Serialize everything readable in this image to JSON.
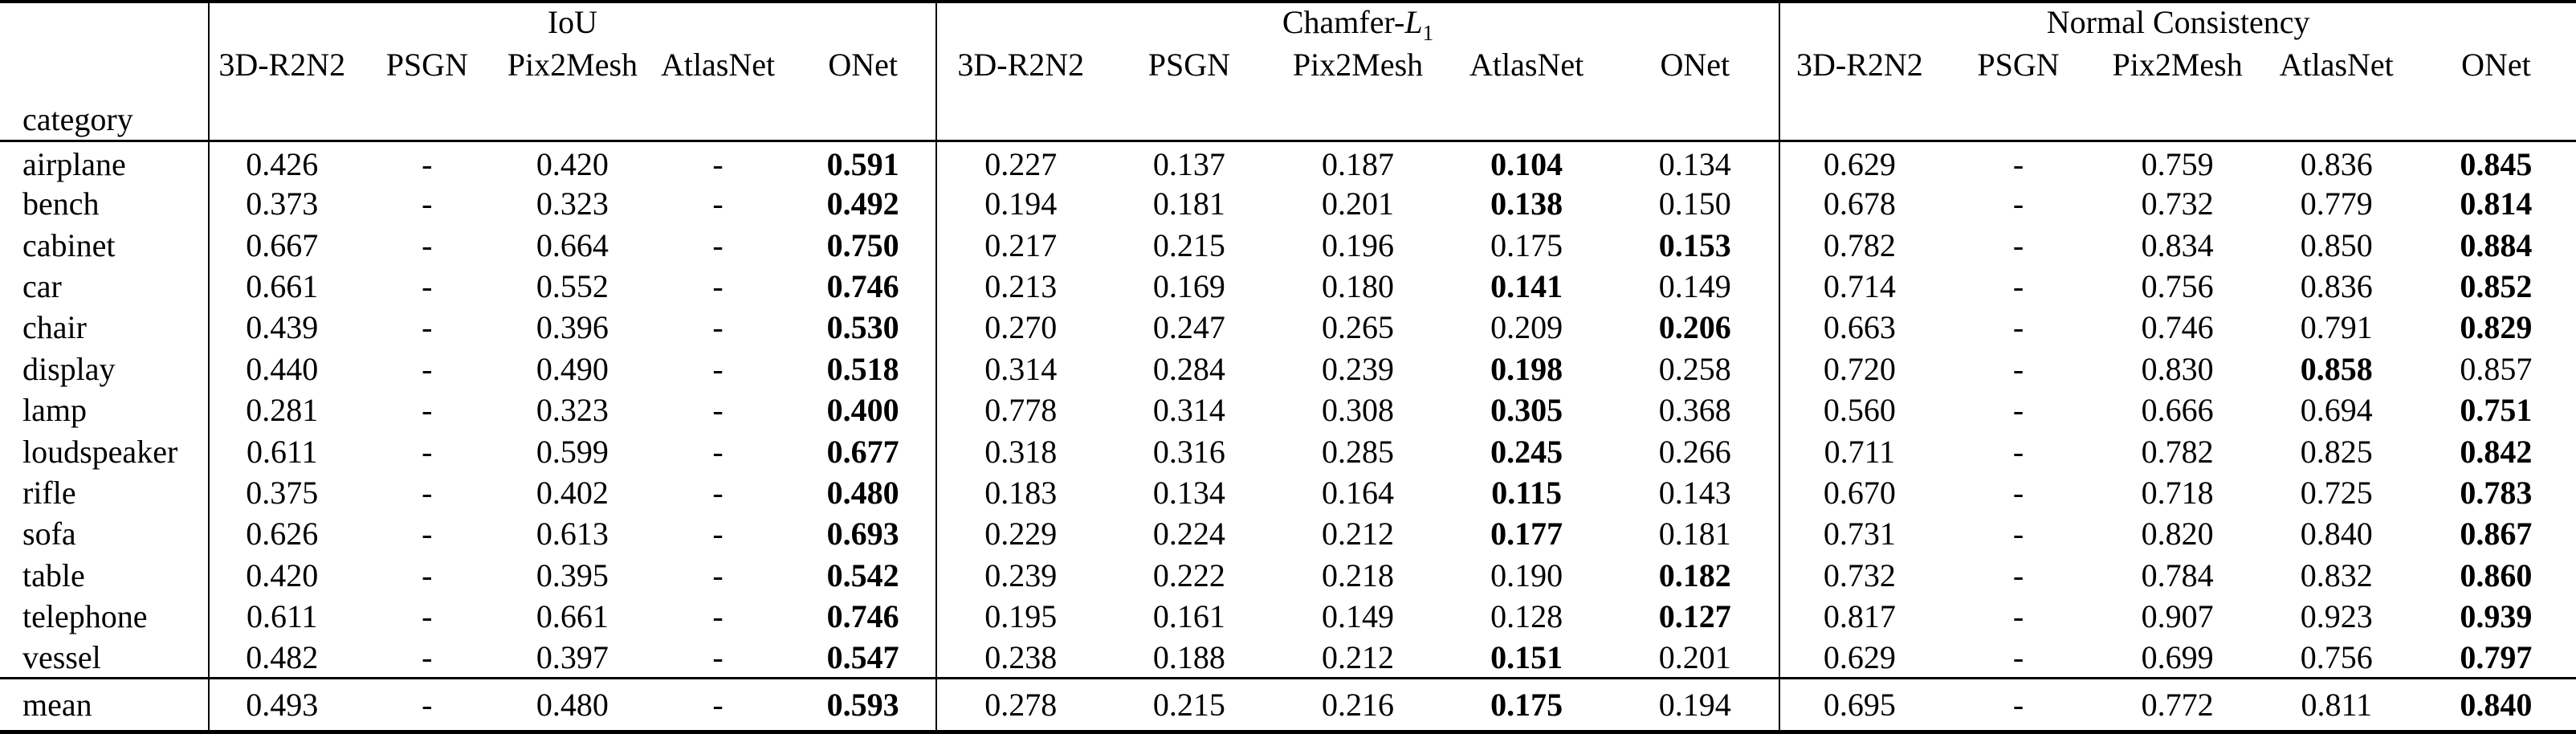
{
  "colors": {
    "background": "#ffffff",
    "text": "#000000",
    "rule": "#000000"
  },
  "table": {
    "corner_label": "category",
    "groups": [
      {
        "label": "IoU",
        "label_prefix": "IoU",
        "label_math": "",
        "label_sub": "",
        "methods": [
          "3D-R2N2",
          "PSGN",
          "Pix2Mesh",
          "AtlasNet",
          "ONet"
        ]
      },
      {
        "label": "Chamfer-L1",
        "label_prefix": "Chamfer-",
        "label_math": "L",
        "label_sub": "1",
        "methods": [
          "3D-R2N2",
          "PSGN",
          "Pix2Mesh",
          "AtlasNet",
          "ONet"
        ]
      },
      {
        "label": "Normal Consistency",
        "label_prefix": "Normal Consistency",
        "label_math": "",
        "label_sub": "",
        "methods": [
          "3D-R2N2",
          "PSGN",
          "Pix2Mesh",
          "AtlasNet",
          "ONet"
        ]
      }
    ],
    "rows": [
      {
        "category": "airplane",
        "values": [
          [
            "0.426",
            "-",
            "0.420",
            "-",
            "0.591"
          ],
          [
            "0.227",
            "0.137",
            "0.187",
            "0.104",
            "0.134"
          ],
          [
            "0.629",
            "-",
            "0.759",
            "0.836",
            "0.845"
          ]
        ],
        "bold": [
          [
            4
          ],
          [
            3
          ],
          [
            4
          ]
        ]
      },
      {
        "category": "bench",
        "values": [
          [
            "0.373",
            "-",
            "0.323",
            "-",
            "0.492"
          ],
          [
            "0.194",
            "0.181",
            "0.201",
            "0.138",
            "0.150"
          ],
          [
            "0.678",
            "-",
            "0.732",
            "0.779",
            "0.814"
          ]
        ],
        "bold": [
          [
            4
          ],
          [
            3
          ],
          [
            4
          ]
        ]
      },
      {
        "category": "cabinet",
        "values": [
          [
            "0.667",
            "-",
            "0.664",
            "-",
            "0.750"
          ],
          [
            "0.217",
            "0.215",
            "0.196",
            "0.175",
            "0.153"
          ],
          [
            "0.782",
            "-",
            "0.834",
            "0.850",
            "0.884"
          ]
        ],
        "bold": [
          [
            4
          ],
          [
            4
          ],
          [
            4
          ]
        ]
      },
      {
        "category": "car",
        "values": [
          [
            "0.661",
            "-",
            "0.552",
            "-",
            "0.746"
          ],
          [
            "0.213",
            "0.169",
            "0.180",
            "0.141",
            "0.149"
          ],
          [
            "0.714",
            "-",
            "0.756",
            "0.836",
            "0.852"
          ]
        ],
        "bold": [
          [
            4
          ],
          [
            3
          ],
          [
            4
          ]
        ]
      },
      {
        "category": "chair",
        "values": [
          [
            "0.439",
            "-",
            "0.396",
            "-",
            "0.530"
          ],
          [
            "0.270",
            "0.247",
            "0.265",
            "0.209",
            "0.206"
          ],
          [
            "0.663",
            "-",
            "0.746",
            "0.791",
            "0.829"
          ]
        ],
        "bold": [
          [
            4
          ],
          [
            4
          ],
          [
            4
          ]
        ]
      },
      {
        "category": "display",
        "values": [
          [
            "0.440",
            "-",
            "0.490",
            "-",
            "0.518"
          ],
          [
            "0.314",
            "0.284",
            "0.239",
            "0.198",
            "0.258"
          ],
          [
            "0.720",
            "-",
            "0.830",
            "0.858",
            "0.857"
          ]
        ],
        "bold": [
          [
            4
          ],
          [
            3
          ],
          [
            3
          ]
        ]
      },
      {
        "category": "lamp",
        "values": [
          [
            "0.281",
            "-",
            "0.323",
            "-",
            "0.400"
          ],
          [
            "0.778",
            "0.314",
            "0.308",
            "0.305",
            "0.368"
          ],
          [
            "0.560",
            "-",
            "0.666",
            "0.694",
            "0.751"
          ]
        ],
        "bold": [
          [
            4
          ],
          [
            3
          ],
          [
            4
          ]
        ]
      },
      {
        "category": "loudspeaker",
        "values": [
          [
            "0.611",
            "-",
            "0.599",
            "-",
            "0.677"
          ],
          [
            "0.318",
            "0.316",
            "0.285",
            "0.245",
            "0.266"
          ],
          [
            "0.711",
            "-",
            "0.782",
            "0.825",
            "0.842"
          ]
        ],
        "bold": [
          [
            4
          ],
          [
            3
          ],
          [
            4
          ]
        ]
      },
      {
        "category": "rifle",
        "values": [
          [
            "0.375",
            "-",
            "0.402",
            "-",
            "0.480"
          ],
          [
            "0.183",
            "0.134",
            "0.164",
            "0.115",
            "0.143"
          ],
          [
            "0.670",
            "-",
            "0.718",
            "0.725",
            "0.783"
          ]
        ],
        "bold": [
          [
            4
          ],
          [
            3
          ],
          [
            4
          ]
        ]
      },
      {
        "category": "sofa",
        "values": [
          [
            "0.626",
            "-",
            "0.613",
            "-",
            "0.693"
          ],
          [
            "0.229",
            "0.224",
            "0.212",
            "0.177",
            "0.181"
          ],
          [
            "0.731",
            "-",
            "0.820",
            "0.840",
            "0.867"
          ]
        ],
        "bold": [
          [
            4
          ],
          [
            3
          ],
          [
            4
          ]
        ]
      },
      {
        "category": "table",
        "values": [
          [
            "0.420",
            "-",
            "0.395",
            "-",
            "0.542"
          ],
          [
            "0.239",
            "0.222",
            "0.218",
            "0.190",
            "0.182"
          ],
          [
            "0.732",
            "-",
            "0.784",
            "0.832",
            "0.860"
          ]
        ],
        "bold": [
          [
            4
          ],
          [
            4
          ],
          [
            4
          ]
        ]
      },
      {
        "category": "telephone",
        "values": [
          [
            "0.611",
            "-",
            "0.661",
            "-",
            "0.746"
          ],
          [
            "0.195",
            "0.161",
            "0.149",
            "0.128",
            "0.127"
          ],
          [
            "0.817",
            "-",
            "0.907",
            "0.923",
            "0.939"
          ]
        ],
        "bold": [
          [
            4
          ],
          [
            4
          ],
          [
            4
          ]
        ]
      },
      {
        "category": "vessel",
        "values": [
          [
            "0.482",
            "-",
            "0.397",
            "-",
            "0.547"
          ],
          [
            "0.238",
            "0.188",
            "0.212",
            "0.151",
            "0.201"
          ],
          [
            "0.629",
            "-",
            "0.699",
            "0.756",
            "0.797"
          ]
        ],
        "bold": [
          [
            4
          ],
          [
            3
          ],
          [
            4
          ]
        ]
      }
    ],
    "mean": {
      "category": "mean",
      "values": [
        [
          "0.493",
          "-",
          "0.480",
          "-",
          "0.593"
        ],
        [
          "0.278",
          "0.215",
          "0.216",
          "0.175",
          "0.194"
        ],
        [
          "0.695",
          "-",
          "0.772",
          "0.811",
          "0.840"
        ]
      ],
      "bold": [
        [
          4
        ],
        [
          3
        ],
        [
          4
        ]
      ]
    }
  }
}
